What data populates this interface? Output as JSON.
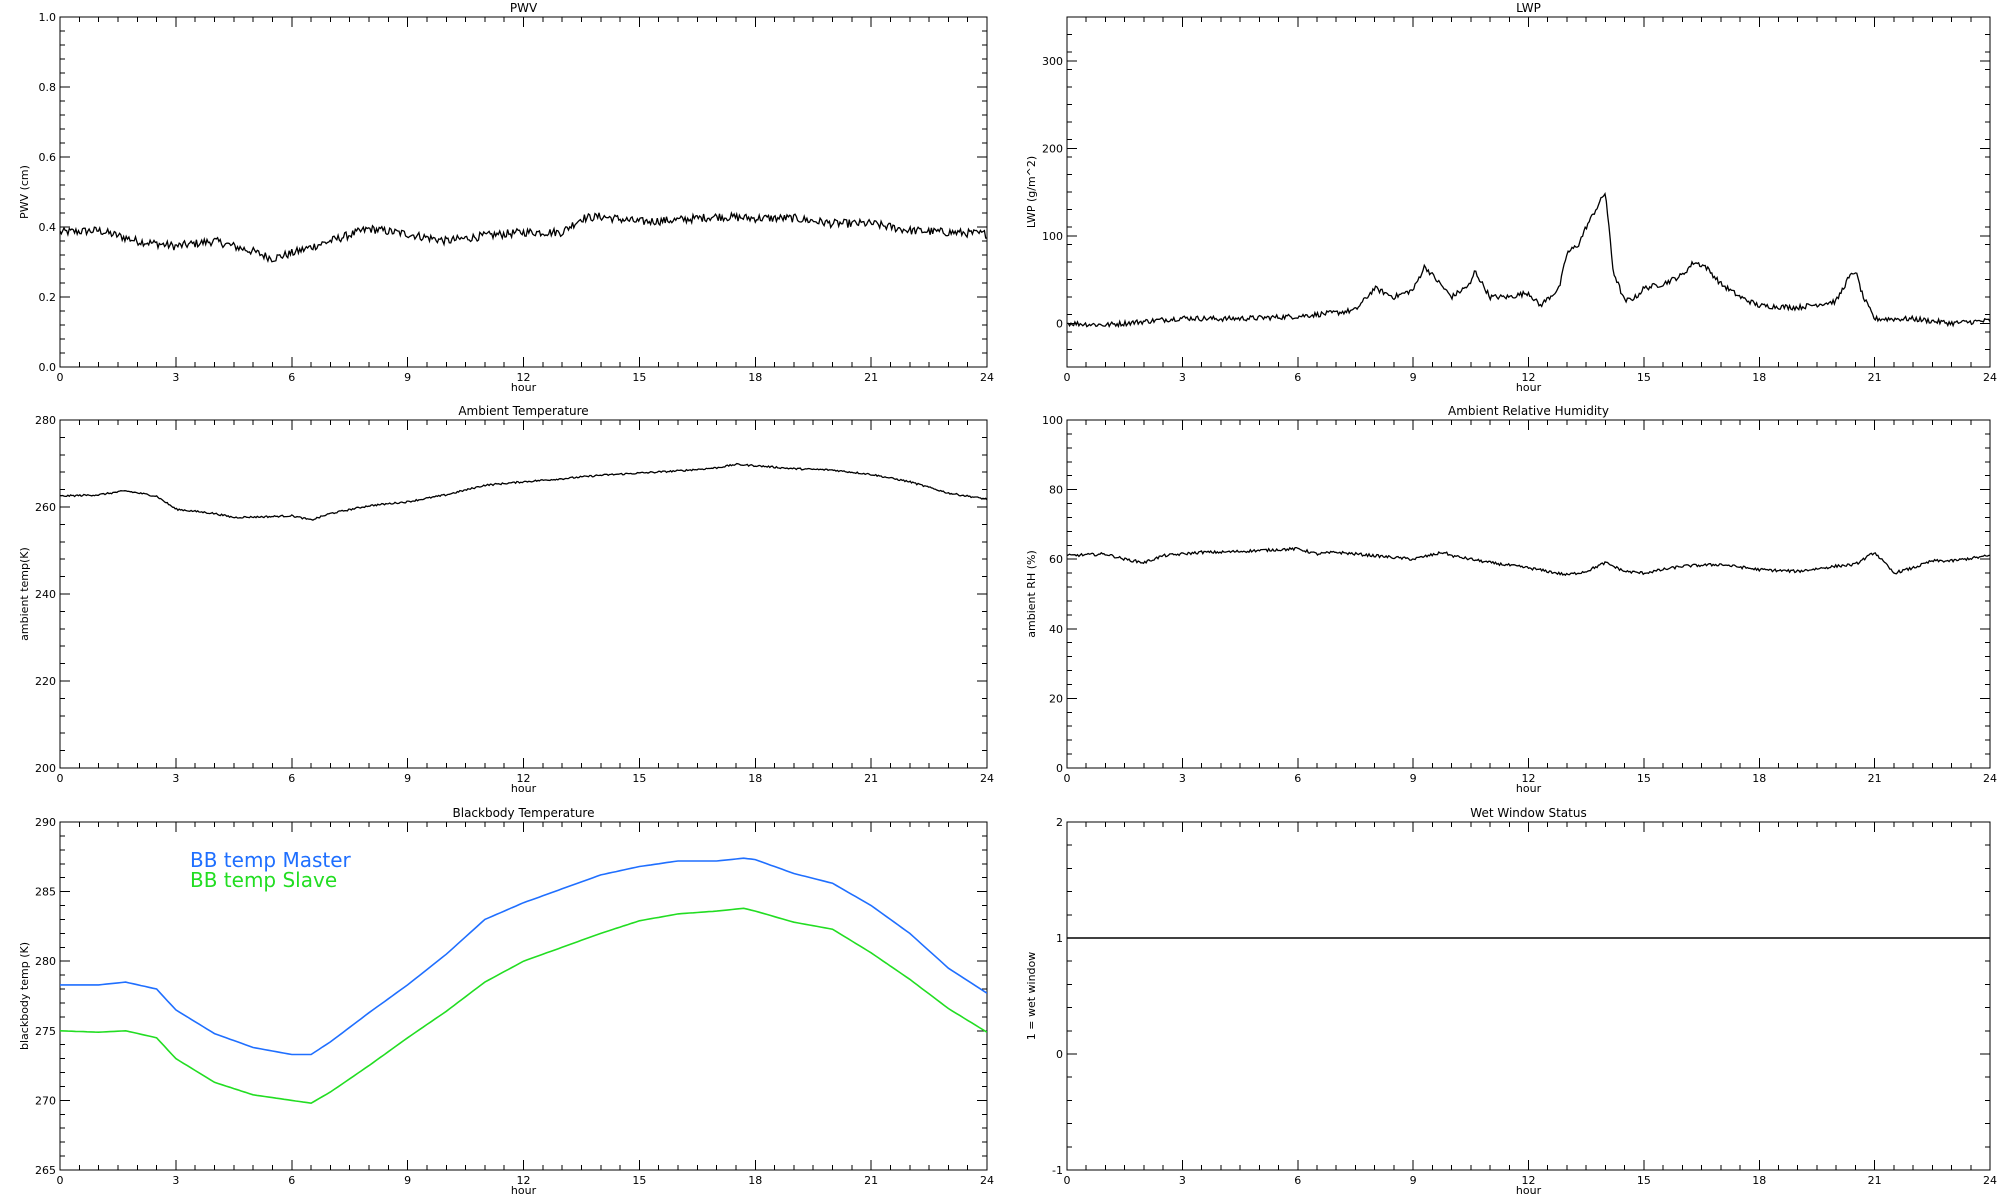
{
  "chart_data": [
    {
      "id": "pwv",
      "type": "line",
      "title": "PWV",
      "xlabel": "hour",
      "ylabel": "PWV (cm)",
      "xlim": [
        0,
        24
      ],
      "ylim": [
        0,
        1
      ],
      "xticks": [
        0,
        3,
        6,
        9,
        12,
        15,
        18,
        21,
        24
      ],
      "yticks": [
        0.0,
        0.2,
        0.4,
        0.6,
        0.8,
        1.0
      ],
      "ytick_labels": [
        "0.0",
        "0.2",
        "0.4",
        "0.6",
        "0.8",
        "1.0"
      ],
      "legend": null,
      "series": [
        {
          "color": "#000000",
          "noise": 0.012,
          "points": [
            [
              0,
              0.385
            ],
            [
              1,
              0.39
            ],
            [
              2,
              0.36
            ],
            [
              3,
              0.345
            ],
            [
              4,
              0.36
            ],
            [
              5,
              0.33
            ],
            [
              5.5,
              0.31
            ],
            [
              6,
              0.325
            ],
            [
              7,
              0.36
            ],
            [
              8,
              0.395
            ],
            [
              9,
              0.38
            ],
            [
              10,
              0.36
            ],
            [
              11,
              0.375
            ],
            [
              12,
              0.385
            ],
            [
              13,
              0.385
            ],
            [
              13.5,
              0.425
            ],
            [
              14,
              0.43
            ],
            [
              15,
              0.415
            ],
            [
              16,
              0.42
            ],
            [
              17,
              0.43
            ],
            [
              18,
              0.425
            ],
            [
              19,
              0.425
            ],
            [
              20,
              0.41
            ],
            [
              21,
              0.41
            ],
            [
              22,
              0.39
            ],
            [
              23,
              0.385
            ],
            [
              24,
              0.38
            ]
          ]
        }
      ]
    },
    {
      "id": "lwp",
      "type": "line",
      "title": "LWP",
      "xlabel": "hour",
      "ylabel": "LWP (g/m^2)",
      "xlim": [
        0,
        24
      ],
      "ylim": [
        -50,
        350
      ],
      "xticks": [
        0,
        3,
        6,
        9,
        12,
        15,
        18,
        21,
        24
      ],
      "yticks": [
        0,
        100,
        200,
        300
      ],
      "ytick_labels": [
        "0",
        "100",
        "200",
        "300"
      ],
      "legend": null,
      "series": [
        {
          "color": "#000000",
          "noise": 3,
          "points": [
            [
              0,
              0
            ],
            [
              1,
              -2
            ],
            [
              2,
              2
            ],
            [
              3,
              6
            ],
            [
              4,
              5
            ],
            [
              5,
              6
            ],
            [
              6,
              8
            ],
            [
              7,
              12
            ],
            [
              7.5,
              15
            ],
            [
              8,
              40
            ],
            [
              8.5,
              30
            ],
            [
              9,
              38
            ],
            [
              9.3,
              65
            ],
            [
              9.5,
              55
            ],
            [
              10,
              30
            ],
            [
              10.5,
              45
            ],
            [
              10.6,
              60
            ],
            [
              11,
              30
            ],
            [
              11.5,
              30
            ],
            [
              12,
              35
            ],
            [
              12.3,
              20
            ],
            [
              12.8,
              40
            ],
            [
              13,
              80
            ],
            [
              13.3,
              90
            ],
            [
              13.5,
              110
            ],
            [
              14,
              150
            ],
            [
              14.2,
              60
            ],
            [
              14.5,
              25
            ],
            [
              14.8,
              30
            ],
            [
              15,
              40
            ],
            [
              15.5,
              45
            ],
            [
              16,
              55
            ],
            [
              16.3,
              70
            ],
            [
              16.6,
              65
            ],
            [
              17,
              45
            ],
            [
              17.5,
              30
            ],
            [
              18,
              20
            ],
            [
              19,
              18
            ],
            [
              20,
              25
            ],
            [
              20.3,
              50
            ],
            [
              20.5,
              60
            ],
            [
              20.7,
              30
            ],
            [
              21,
              5
            ],
            [
              22,
              5
            ],
            [
              23,
              0
            ],
            [
              24,
              3
            ]
          ]
        }
      ]
    },
    {
      "id": "ambient-temperature",
      "type": "line",
      "title": "Ambient Temperature",
      "xlabel": "hour",
      "ylabel": "ambient temp(K)",
      "xlim": [
        0,
        24
      ],
      "ylim": [
        200,
        280
      ],
      "xticks": [
        0,
        3,
        6,
        9,
        12,
        15,
        18,
        21,
        24
      ],
      "yticks": [
        200,
        220,
        240,
        260,
        280
      ],
      "ytick_labels": [
        "200",
        "220",
        "240",
        "260",
        "280"
      ],
      "legend": null,
      "series": [
        {
          "color": "#000000",
          "noise": 0.2,
          "points": [
            [
              0,
              262.5
            ],
            [
              1,
              262.8
            ],
            [
              1.7,
              263.7
            ],
            [
              2.5,
              262.5
            ],
            [
              3,
              259.5
            ],
            [
              4,
              258.5
            ],
            [
              4.5,
              257.6
            ],
            [
              5.5,
              257.8
            ],
            [
              6,
              258
            ],
            [
              6.5,
              257
            ],
            [
              7,
              258.5
            ],
            [
              8,
              260.3
            ],
            [
              9,
              261.2
            ],
            [
              10,
              262.8
            ],
            [
              11,
              265
            ],
            [
              12,
              265.8
            ],
            [
              13,
              266.5
            ],
            [
              14,
              267.3
            ],
            [
              15,
              267.8
            ],
            [
              16,
              268.3
            ],
            [
              17,
              269
            ],
            [
              17.5,
              269.8
            ],
            [
              18,
              269.5
            ],
            [
              19,
              268.8
            ],
            [
              20,
              268.5
            ],
            [
              21,
              267.5
            ],
            [
              22,
              265.8
            ],
            [
              23,
              263.2
            ],
            [
              24,
              261.8
            ]
          ]
        }
      ]
    },
    {
      "id": "ambient-relative-humidity",
      "type": "line",
      "title": "Ambient Relative Humidity",
      "xlabel": "hour",
      "ylabel": "ambient RH (%)",
      "xlim": [
        0,
        24
      ],
      "ylim": [
        0,
        100
      ],
      "xticks": [
        0,
        3,
        6,
        9,
        12,
        15,
        18,
        21,
        24
      ],
      "yticks": [
        0,
        20,
        40,
        60,
        80,
        100
      ],
      "ytick_labels": [
        "0",
        "20",
        "40",
        "60",
        "80",
        "100"
      ],
      "legend": null,
      "series": [
        {
          "color": "#000000",
          "noise": 0.4,
          "points": [
            [
              0,
              61
            ],
            [
              1,
              61.5
            ],
            [
              1.5,
              60
            ],
            [
              2,
              59
            ],
            [
              2.5,
              61
            ],
            [
              3,
              61.5
            ],
            [
              3.5,
              62
            ],
            [
              4,
              62
            ],
            [
              5,
              62.5
            ],
            [
              6,
              63
            ],
            [
              6.5,
              61.5
            ],
            [
              7,
              62
            ],
            [
              8,
              61
            ],
            [
              9,
              60
            ],
            [
              9.8,
              62
            ],
            [
              10,
              61
            ],
            [
              11,
              59
            ],
            [
              12,
              57.5
            ],
            [
              13,
              55.5
            ],
            [
              13.5,
              56.5
            ],
            [
              14,
              59
            ],
            [
              14.5,
              56.5
            ],
            [
              15,
              56
            ],
            [
              16,
              58
            ],
            [
              17,
              58.5
            ],
            [
              18,
              57
            ],
            [
              19,
              56.5
            ],
            [
              20,
              58
            ],
            [
              20.5,
              58.5
            ],
            [
              21,
              62
            ],
            [
              21.5,
              56
            ],
            [
              22,
              57.5
            ],
            [
              22.5,
              59.5
            ],
            [
              23,
              59.5
            ],
            [
              24,
              61
            ]
          ]
        }
      ]
    },
    {
      "id": "blackbody-temperature",
      "type": "line",
      "title": "Blackbody Temperature",
      "xlabel": "hour",
      "ylabel": "blackbody temp (K)",
      "xlim": [
        0,
        24
      ],
      "ylim": [
        265,
        290
      ],
      "xticks": [
        0,
        3,
        6,
        9,
        12,
        15,
        18,
        21,
        24
      ],
      "yticks": [
        265,
        270,
        275,
        280,
        285,
        290
      ],
      "ytick_labels": [
        "265",
        "270",
        "275",
        "280",
        "285",
        "290"
      ],
      "legend": "top-left",
      "series": [
        {
          "name": "BB temp Master",
          "color": "#1f6fff",
          "noise": 0,
          "points": [
            [
              0,
              278.3
            ],
            [
              1,
              278.3
            ],
            [
              1.7,
              278.5
            ],
            [
              2.5,
              278
            ],
            [
              3,
              276.5
            ],
            [
              4,
              274.8
            ],
            [
              5,
              273.8
            ],
            [
              6,
              273.3
            ],
            [
              6.5,
              273.3
            ],
            [
              7,
              274.2
            ],
            [
              8,
              276.3
            ],
            [
              9,
              278.3
            ],
            [
              10,
              280.5
            ],
            [
              11,
              283
            ],
            [
              12,
              284.2
            ],
            [
              13,
              285.2
            ],
            [
              14,
              286.2
            ],
            [
              15,
              286.8
            ],
            [
              16,
              287.2
            ],
            [
              17,
              287.2
            ],
            [
              17.7,
              287.4
            ],
            [
              18,
              287.3
            ],
            [
              19,
              286.3
            ],
            [
              20,
              285.6
            ],
            [
              21,
              284
            ],
            [
              22,
              282
            ],
            [
              23,
              279.5
            ],
            [
              24,
              277.7
            ]
          ]
        },
        {
          "name": "BB temp Slave",
          "color": "#22dd22",
          "noise": 0,
          "points": [
            [
              0,
              275
            ],
            [
              1,
              274.9
            ],
            [
              1.7,
              275
            ],
            [
              2.5,
              274.5
            ],
            [
              3,
              273
            ],
            [
              4,
              271.3
            ],
            [
              5,
              270.4
            ],
            [
              6,
              270
            ],
            [
              6.5,
              269.8
            ],
            [
              7,
              270.6
            ],
            [
              8,
              272.5
            ],
            [
              9,
              274.5
            ],
            [
              10,
              276.4
            ],
            [
              11,
              278.5
            ],
            [
              12,
              280
            ],
            [
              13,
              281
            ],
            [
              14,
              282
            ],
            [
              15,
              282.9
            ],
            [
              16,
              283.4
            ],
            [
              17,
              283.6
            ],
            [
              17.7,
              283.8
            ],
            [
              18,
              283.6
            ],
            [
              19,
              282.8
            ],
            [
              20,
              282.3
            ],
            [
              21,
              280.6
            ],
            [
              22,
              278.7
            ],
            [
              23,
              276.6
            ],
            [
              24,
              274.9
            ]
          ]
        }
      ]
    },
    {
      "id": "wet-window-status",
      "type": "line",
      "title": "Wet Window Status",
      "xlabel": "hour",
      "ylabel": "1 = wet window",
      "xlim": [
        0,
        24
      ],
      "ylim": [
        -1,
        2
      ],
      "xticks": [
        0,
        3,
        6,
        9,
        12,
        15,
        18,
        21,
        24
      ],
      "yticks": [
        -1,
        0,
        1,
        2
      ],
      "ytick_labels": [
        "-1",
        "0",
        "1",
        "2"
      ],
      "legend": null,
      "series": [
        {
          "color": "#000000",
          "noise": 0,
          "points": [
            [
              0,
              1
            ],
            [
              24,
              1
            ]
          ]
        }
      ]
    }
  ]
}
